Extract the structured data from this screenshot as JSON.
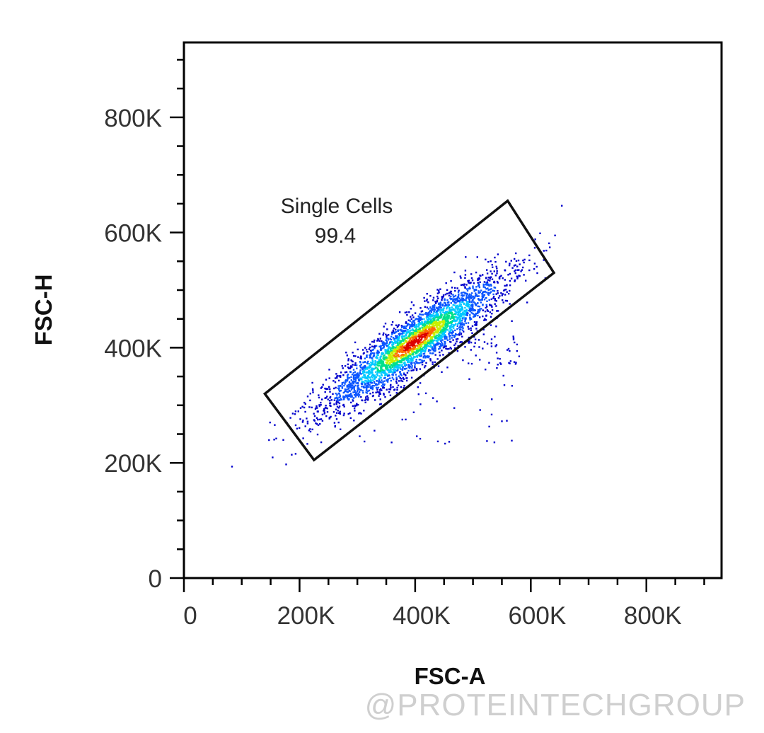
{
  "chart_data": {
    "type": "scatter",
    "xlabel": "FSC-A",
    "ylabel": "FSC-H",
    "xlim": [
      0,
      930000
    ],
    "ylim": [
      0,
      930000
    ],
    "x_ticks": [
      0,
      200000,
      400000,
      600000,
      800000
    ],
    "y_ticks": [
      0,
      200000,
      400000,
      600000,
      800000
    ],
    "x_tick_labels": [
      "0",
      "200K",
      "400K",
      "600K",
      "800K"
    ],
    "y_tick_labels": [
      "0",
      "200K",
      "400K",
      "600K",
      "800K"
    ],
    "density_colors": [
      "#0000cc",
      "#0a55ff",
      "#00c8ff",
      "#00e08c",
      "#c8f000",
      "#ff6a00",
      "#dd0000"
    ],
    "population": {
      "center": [
        400000,
        410000
      ],
      "spread_along": 95000,
      "spread_across": 20000,
      "slope": 0.72
    },
    "gate": {
      "name": "Single Cells",
      "value": "99.4",
      "vertices": [
        [
          140000,
          320000
        ],
        [
          225000,
          205000
        ],
        [
          640000,
          530000
        ],
        [
          560000,
          655000
        ]
      ]
    },
    "grid": false
  },
  "watermark": "@PROTEINTECHGROUP"
}
